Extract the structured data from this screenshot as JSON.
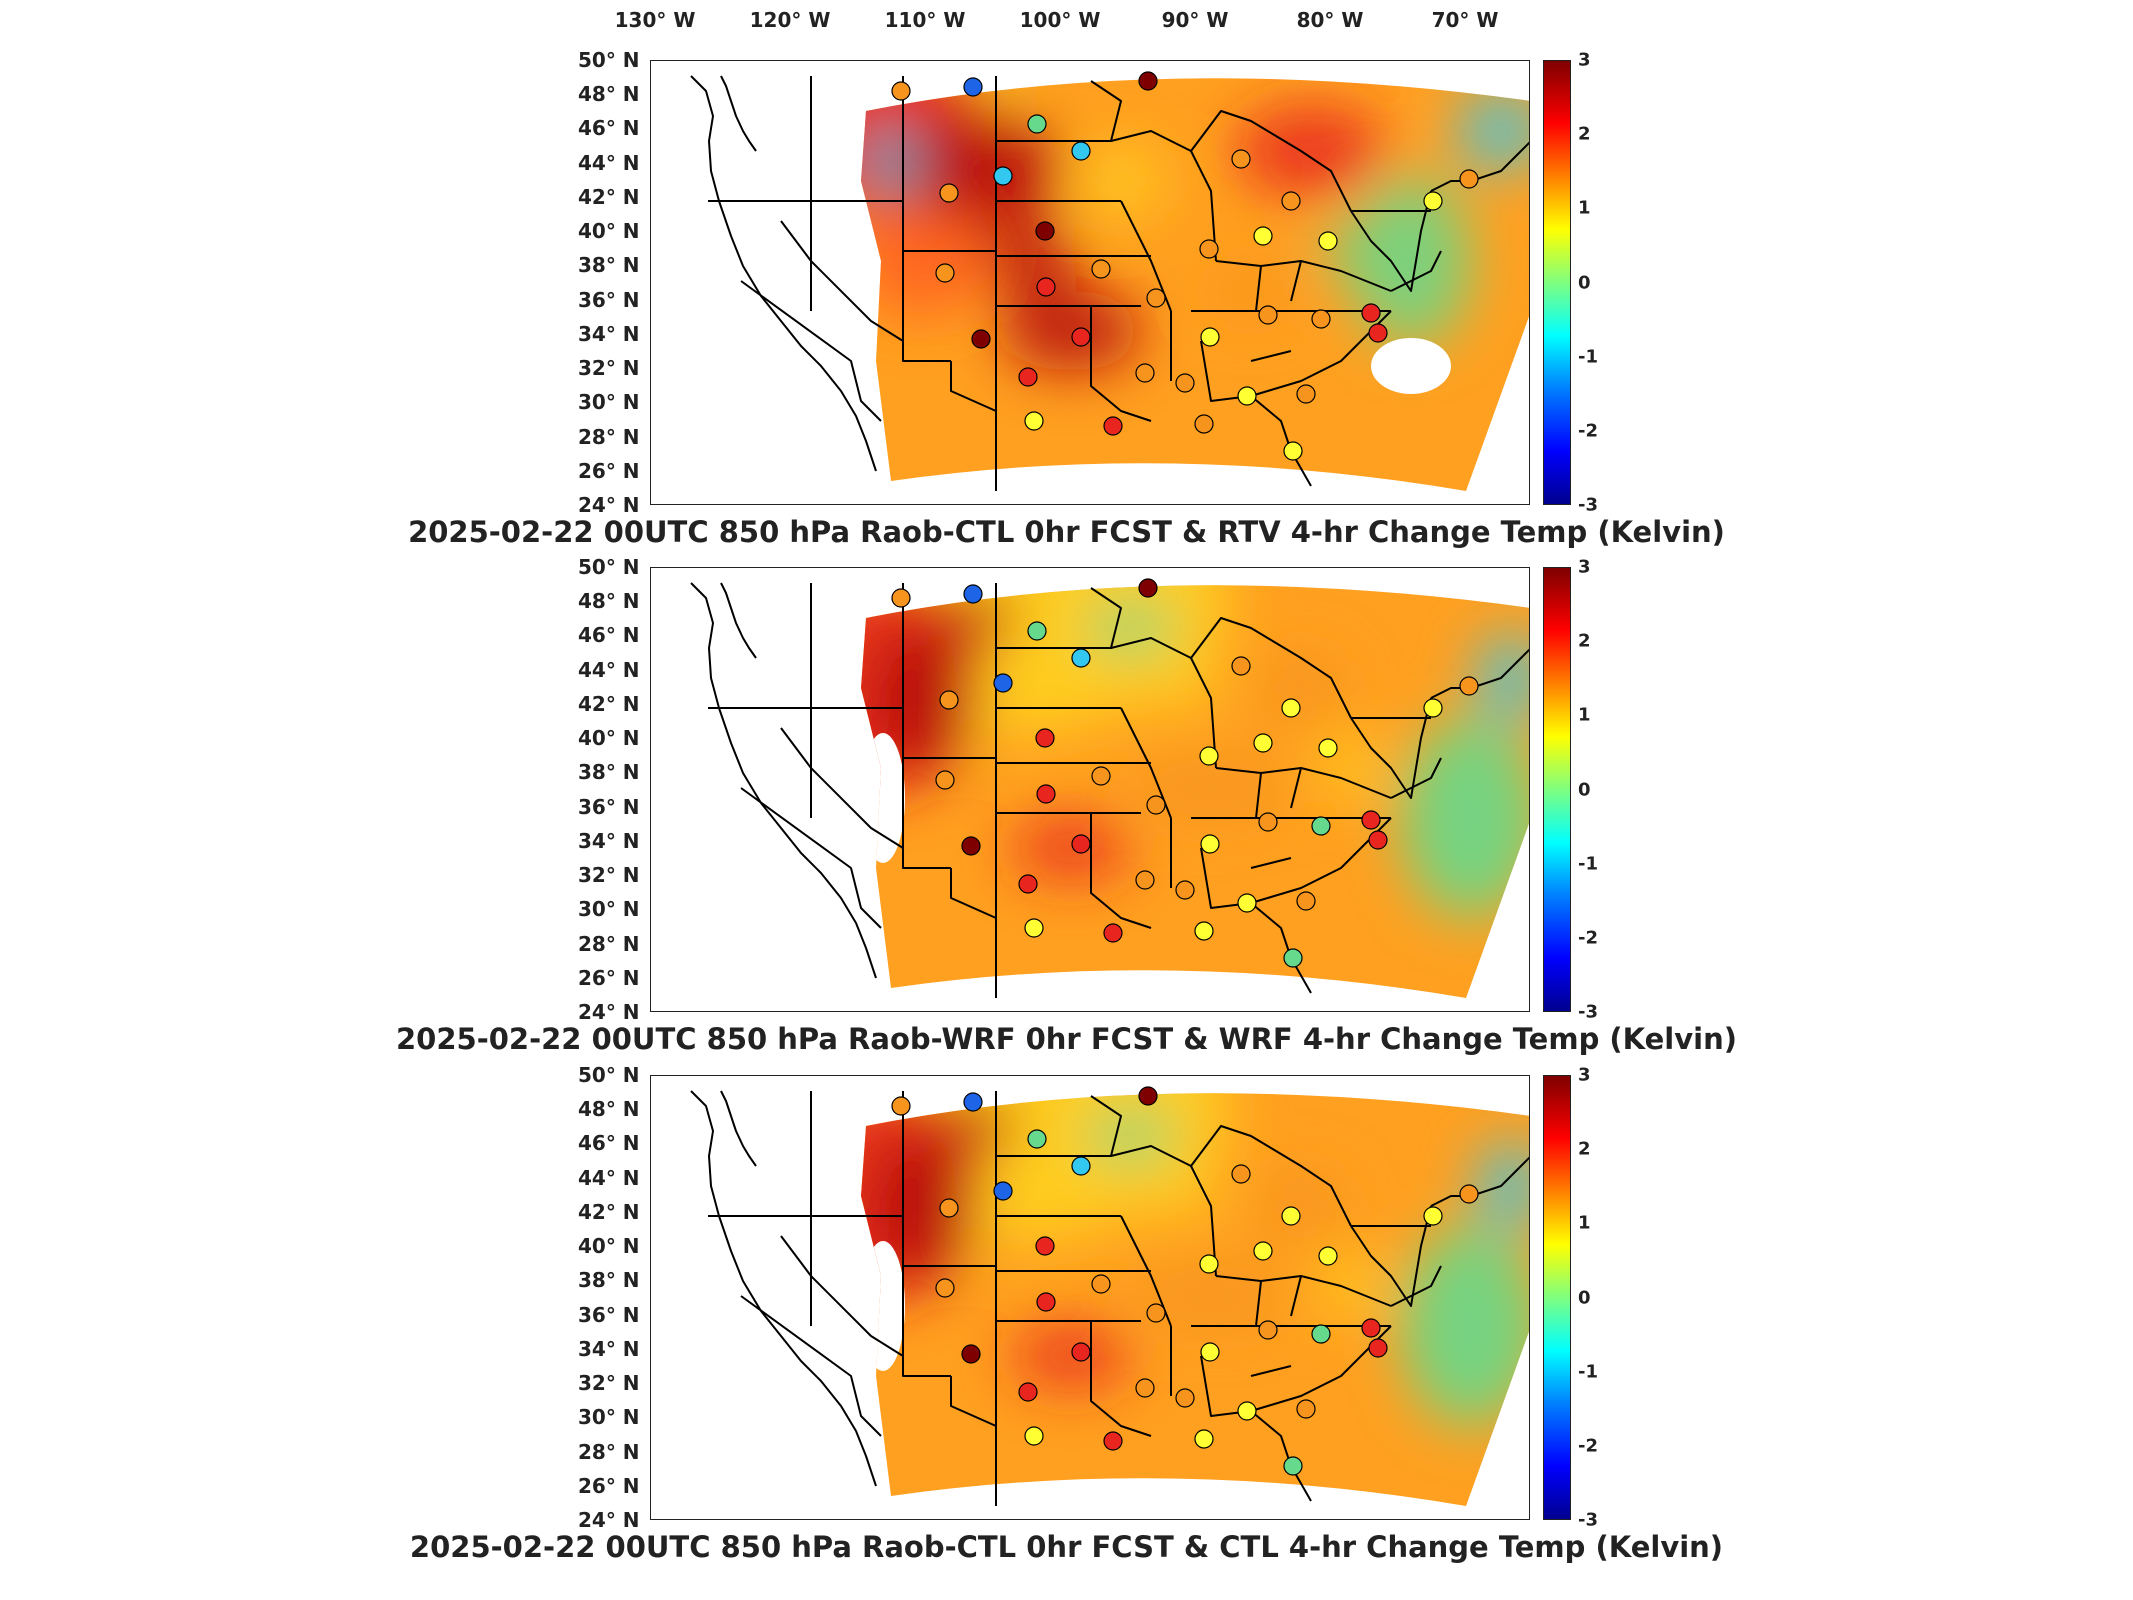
{
  "longitude_axis": [
    "130° W",
    "120° W",
    "110° W",
    "100° W",
    "90° W",
    "80° W",
    "70° W"
  ],
  "latitude_axis": [
    "50° N",
    "48° N",
    "46° N",
    "44° N",
    "42° N",
    "40° N",
    "38° N",
    "36° N",
    "34° N",
    "32° N",
    "30° N",
    "28° N",
    "26° N",
    "24° N"
  ],
  "colorbar": {
    "ticks": [
      "3",
      "2",
      "1",
      "0",
      "-1",
      "-2",
      "-3"
    ],
    "colormap": "jet",
    "min": -3,
    "max": 3
  },
  "panels": [
    {
      "title": "2025-02-22 00UTC 850 hPa Raob-CTL 0hr FCST & RTV 4-hr Change Temp (Kelvin)"
    },
    {
      "title": "2025-02-22 00UTC 850 hPa Raob-WRF 0hr FCST & WRF 4-hr Change Temp (Kelvin)"
    },
    {
      "title": "2025-02-22 00UTC 850 hPa Raob-CTL 0hr FCST & CTL 4-hr Change Temp (Kelvin)"
    }
  ],
  "colors": {
    "dark_red": "#7f0000",
    "red": "#e8261f",
    "orange": "#f7941d",
    "yellow": "#ffff33",
    "green": "#66d98c",
    "cyan": "#33c8f0",
    "blue": "#1e64e6",
    "outline": "#000000",
    "no_data": "#ffffff"
  }
}
